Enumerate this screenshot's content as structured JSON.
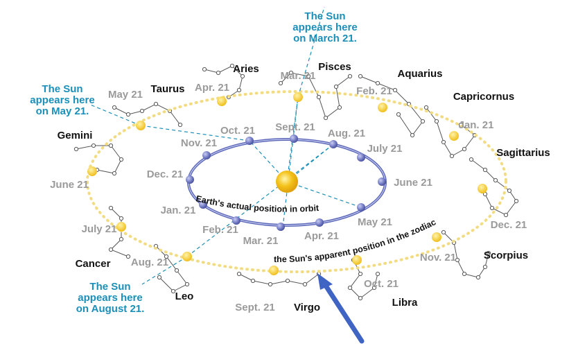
{
  "colors": {
    "orbit": "#5a66b8",
    "sun": "#f4c21b",
    "path_dots": "#f2dc83",
    "callout": "#1b8fb8",
    "arrow": "#3f64c4",
    "constellation": "#555555"
  },
  "orbit_label": "Earth's actual position in orbit",
  "path_label": "the Sun's apparent position in the zodiac",
  "earth_months": [
    "Sept. 21",
    "Aug. 21",
    "July 21",
    "June 21",
    "May 21",
    "Apr. 21",
    "Mar. 21",
    "Feb. 21",
    "Jan. 21",
    "Dec. 21",
    "Nov. 21",
    "Oct. 21"
  ],
  "sun_months": [
    "Mar. 21",
    "Feb. 21",
    "Jan. 21",
    "Dec. 21",
    "Nov. 21",
    "Oct. 21",
    "Sept. 21",
    "Aug. 21",
    "July 21",
    "June 21",
    "May 21",
    "Apr. 21"
  ],
  "constellations": [
    "Pisces",
    "Aquarius",
    "Capricornus",
    "Sagittarius",
    "Scorpius",
    "Libra",
    "Virgo",
    "Leo",
    "Cancer",
    "Gemini",
    "Taurus",
    "Aries"
  ],
  "callouts": [
    {
      "lines": [
        "The Sun",
        "appears here",
        "on March 21."
      ]
    },
    {
      "lines": [
        "The Sun",
        "appears here",
        "on May 21."
      ]
    },
    {
      "lines": [
        "The Sun",
        "appears here",
        "on August 21."
      ]
    }
  ]
}
